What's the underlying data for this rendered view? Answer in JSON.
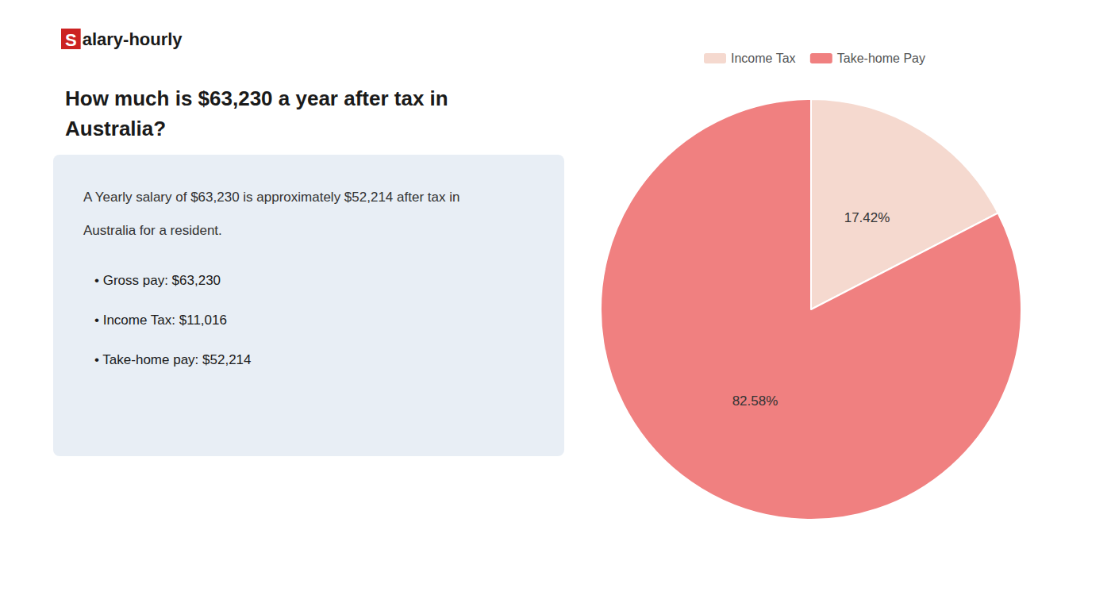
{
  "chart_data": {
    "type": "pie",
    "title": "How much is $63,230 a year after tax in\nAustralia?",
    "annotations": [
      "Salary-hourly",
      "A Yearly salary of $63,230 is approximately $52,214 after tax in",
      "Australia for a resident.",
      "• Gross pay: $63,230",
      "• Income Tax: $11,016",
      "• Take-home pay: $52,214"
    ],
    "categories": [
      "Income Tax",
      "Take-home Pay"
    ],
    "values": [
      17.42,
      82.58
    ],
    "value_labels": [
      "17.42%",
      "82.58%"
    ],
    "colors": [
      "#f5d9cf",
      "#f08080"
    ],
    "data_labels": true,
    "legend": "top"
  }
}
